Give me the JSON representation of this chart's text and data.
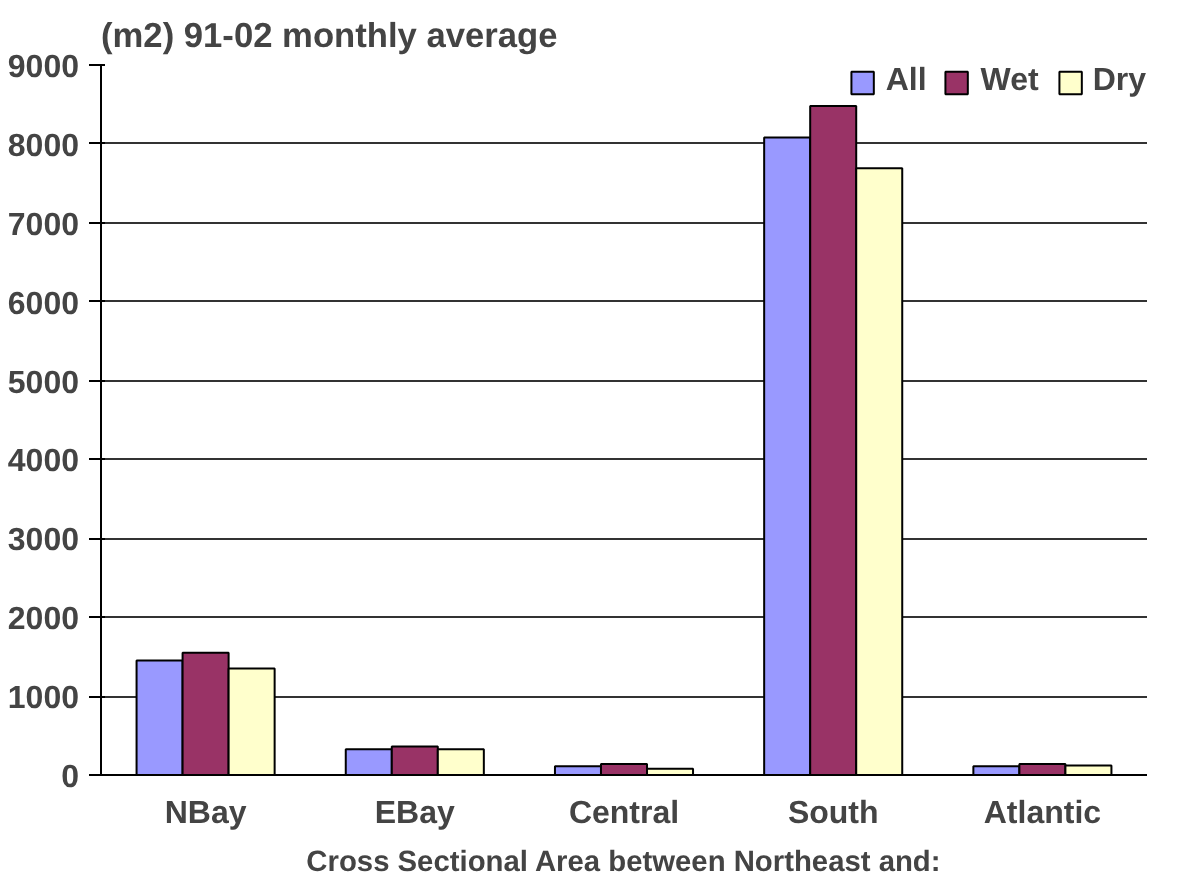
{
  "chart_data": {
    "type": "bar",
    "title": "(m2)  91-02 monthly average",
    "xlabel": "Cross Sectional Area between Northeast and:",
    "categories": [
      "NBay",
      "EBay",
      "Central",
      "South",
      "Atlantic"
    ],
    "series": [
      {
        "name": "All",
        "color": "#9999ff",
        "values": [
          1450,
          325,
          110,
          8080,
          110
        ]
      },
      {
        "name": "Wet",
        "color": "#993366",
        "values": [
          1550,
          360,
          140,
          8480,
          140
        ]
      },
      {
        "name": "Dry",
        "color": "#ffffcc",
        "values": [
          1350,
          325,
          80,
          7690,
          120
        ]
      }
    ],
    "ylim": [
      0,
      9000
    ],
    "yticks": [
      0,
      1000,
      2000,
      3000,
      4000,
      5000,
      6000,
      7000,
      8000,
      9000
    ],
    "grid": "y",
    "legend": "top right"
  }
}
